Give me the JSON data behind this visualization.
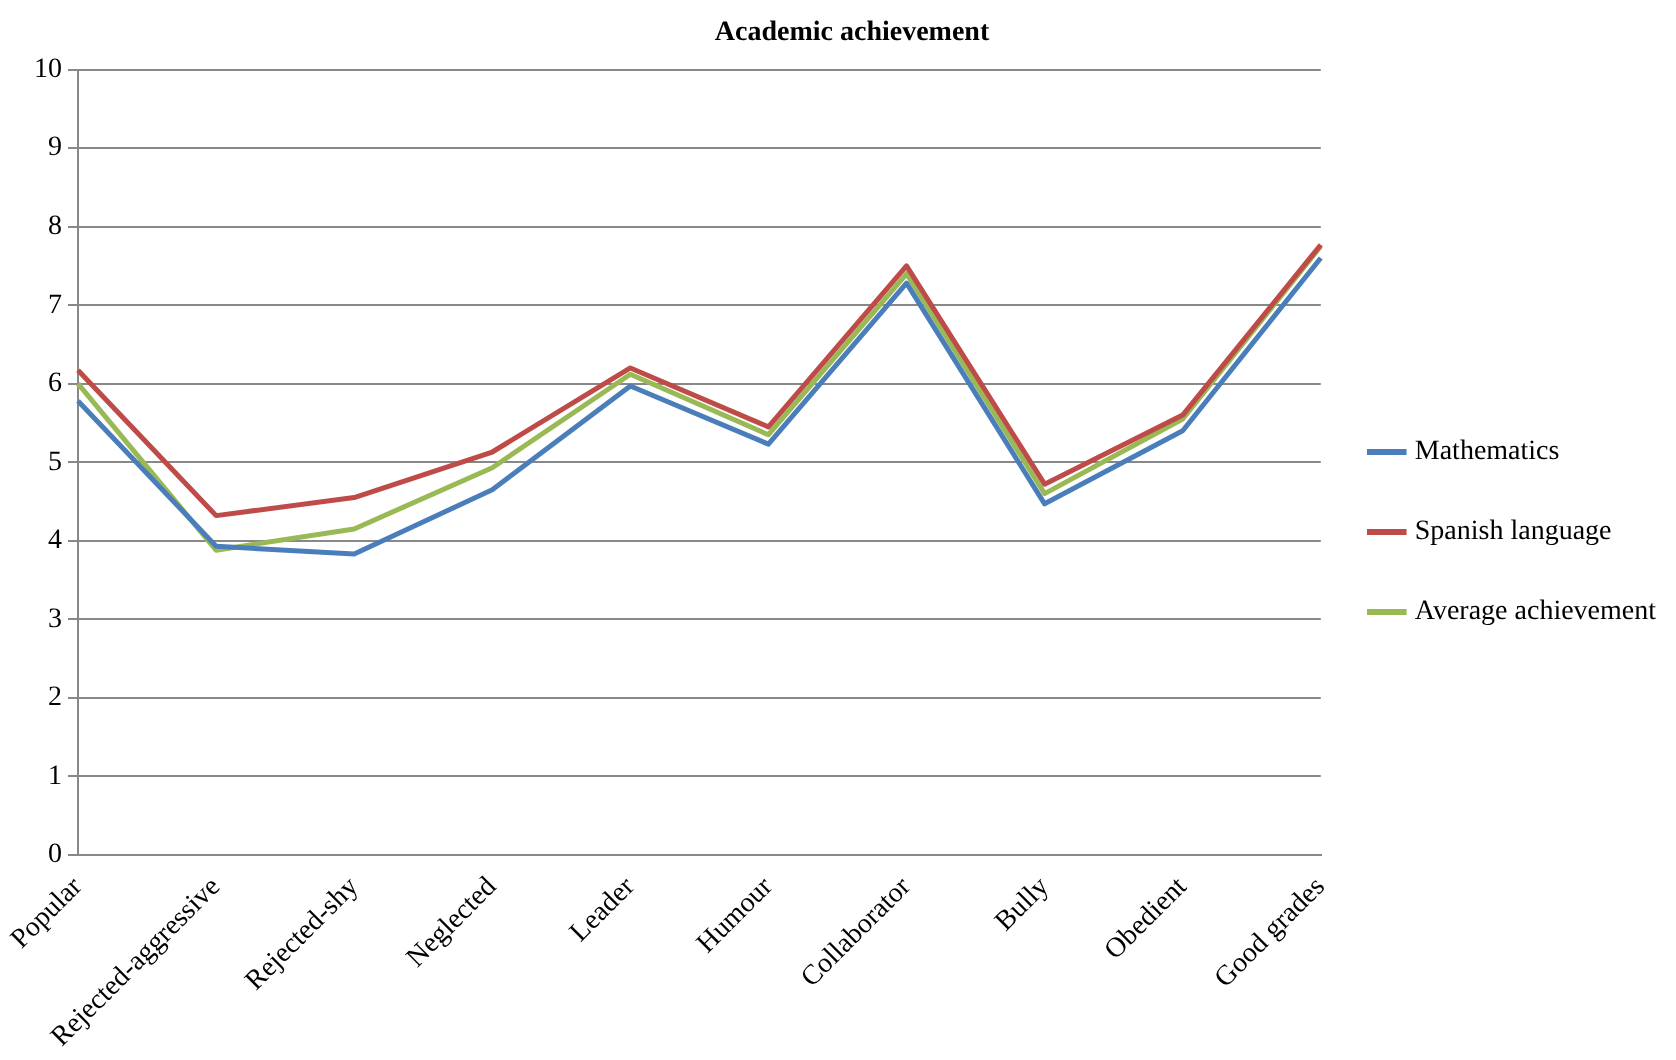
{
  "chart_data": {
    "type": "line",
    "title": "Academic achievement",
    "categories": [
      "Popular",
      "Rejected-aggressive",
      "Rejected-shy",
      "Neglected",
      "Leader",
      "Humour",
      "Collaborator",
      "Bully",
      "Obedient",
      "Good grades"
    ],
    "series": [
      {
        "name": "Mathematics",
        "color": "#4a7ebb",
        "values": [
          5.78,
          3.93,
          3.83,
          4.65,
          5.97,
          5.23,
          7.28,
          4.47,
          5.4,
          7.6
        ]
      },
      {
        "name": "Spanish language",
        "color": "#be4b48",
        "values": [
          6.17,
          4.32,
          4.55,
          5.13,
          6.2,
          5.45,
          7.5,
          4.72,
          5.6,
          7.77
        ]
      },
      {
        "name": "Average achievement",
        "color": "#98b954",
        "values": [
          6.0,
          3.88,
          4.15,
          4.93,
          6.12,
          5.35,
          7.4,
          4.6,
          5.55,
          7.75
        ]
      }
    ],
    "ylim": [
      0,
      10
    ],
    "yticks": [
      0,
      1,
      2,
      3,
      4,
      5,
      6,
      7,
      8,
      9,
      10
    ],
    "grid": "y",
    "legend": "right",
    "marker": "none",
    "line_style": "solid"
  }
}
